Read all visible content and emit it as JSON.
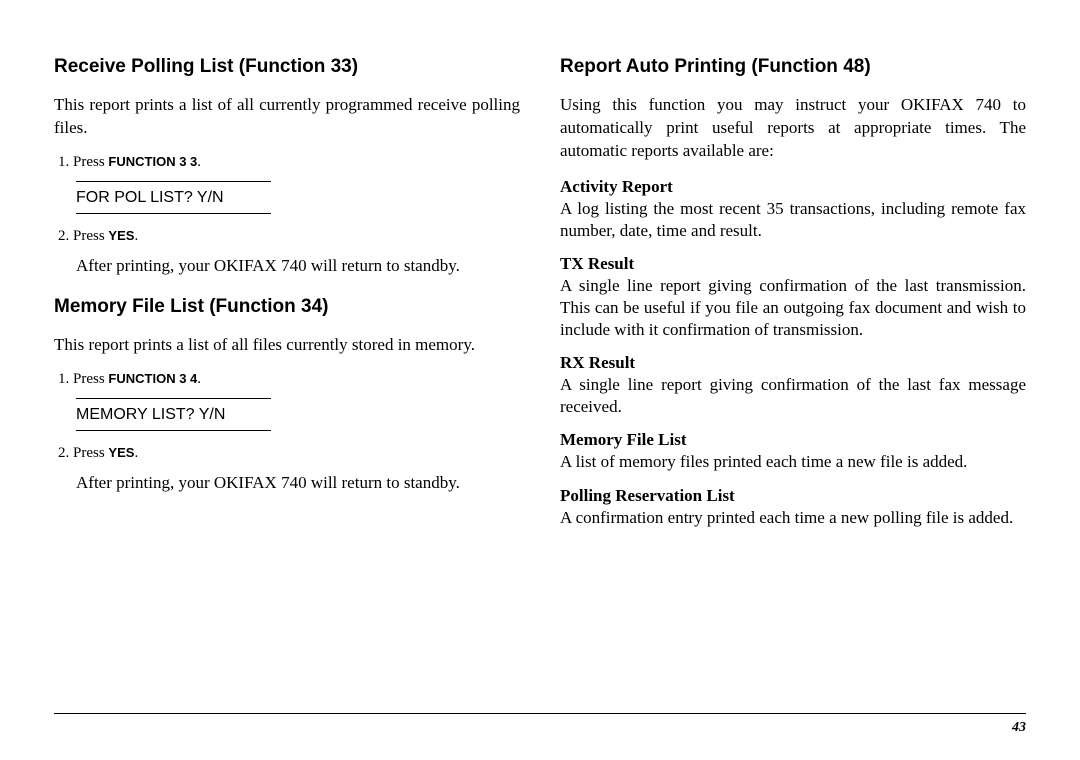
{
  "left": {
    "sec1": {
      "heading": "Receive Polling List (Function 33)",
      "intro": "This report prints a list of all currently programmed receive polling files.",
      "step1_prefix": "1.  Press ",
      "step1_keys": "FUNCTION  3  3",
      "step1_suffix": ".",
      "display": "FOR POL LIST? Y/N",
      "step2_prefix": "2.  Press ",
      "step2_keys": "YES",
      "step2_suffix": ".",
      "after": "After printing, your OKIFAX 740 will return to standby."
    },
    "sec2": {
      "heading": "Memory File List (Function 34)",
      "intro": "This report prints a list of all files currently stored in memory.",
      "step1_prefix": "1.  Press ",
      "step1_keys": "FUNCTION  3  4",
      "step1_suffix": ".",
      "display": "MEMORY LIST? Y/N",
      "step2_prefix": "2.  Press ",
      "step2_keys": "YES",
      "step2_suffix": ".",
      "after": "After printing, your OKIFAX 740 will return to standby."
    }
  },
  "right": {
    "heading": "Report Auto Printing (Function 48)",
    "intro": "Using this function you may instruct your OKIFAX 740 to automatically print useful reports at appropriate times. The automatic reports available are:",
    "items": [
      {
        "title": "Activity Report",
        "body": "A log listing the most recent 35 transactions, including remote fax number, date, time and result."
      },
      {
        "title": "TX Result",
        "body": "A single line report giving confirmation of the last transmission. This can be useful if you file an outgoing fax document and wish to include with it confirmation of transmission."
      },
      {
        "title": "RX Result",
        "body": "A single line report giving confirmation of the last fax message received."
      },
      {
        "title": "Memory File List",
        "body": "A list of memory files printed each time a new file is added."
      },
      {
        "title": "Polling Reservation List",
        "body": "A confirmation entry printed each time a new polling file is added."
      }
    ]
  },
  "page_number": "43"
}
